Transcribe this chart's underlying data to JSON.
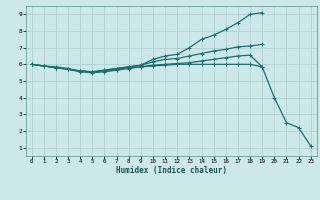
{
  "xlabel": "Humidex (Indice chaleur)",
  "bg_color": "#cce8e8",
  "grid_color": "#aacccc",
  "line_color": "#1a7070",
  "xlim": [
    -0.5,
    23.5
  ],
  "ylim": [
    0.5,
    9.5
  ],
  "xticks": [
    0,
    1,
    2,
    3,
    4,
    5,
    6,
    7,
    8,
    9,
    10,
    11,
    12,
    13,
    14,
    15,
    16,
    17,
    18,
    19,
    20,
    21,
    22,
    23
  ],
  "yticks": [
    1,
    2,
    3,
    4,
    5,
    6,
    7,
    8,
    9
  ],
  "line1_x": [
    0,
    1,
    2,
    3,
    4,
    5,
    6,
    7,
    8,
    9,
    10,
    11,
    12,
    13,
    14,
    15,
    16,
    17,
    18,
    19
  ],
  "line1_y": [
    6.0,
    5.9,
    5.8,
    5.7,
    5.6,
    5.55,
    5.65,
    5.75,
    5.85,
    5.95,
    6.3,
    6.5,
    6.6,
    7.0,
    7.5,
    7.75,
    8.1,
    8.5,
    9.0,
    9.1
  ],
  "line2_x": [
    0,
    1,
    2,
    3,
    4,
    5,
    6,
    7,
    8,
    9,
    10,
    11,
    12,
    13,
    14,
    15,
    16,
    17,
    18,
    19
  ],
  "line2_y": [
    6.0,
    5.9,
    5.8,
    5.7,
    5.6,
    5.55,
    5.65,
    5.75,
    5.85,
    5.95,
    6.15,
    6.3,
    6.35,
    6.5,
    6.65,
    6.8,
    6.9,
    7.05,
    7.1,
    7.2
  ],
  "line3_x": [
    0,
    1,
    2,
    3,
    4,
    5,
    6,
    7,
    8,
    9,
    10,
    11,
    12,
    13,
    14,
    15,
    16,
    17,
    18,
    19,
    20,
    21,
    22,
    23
  ],
  "line3_y": [
    6.0,
    5.9,
    5.8,
    5.7,
    5.55,
    5.5,
    5.55,
    5.65,
    5.75,
    5.85,
    5.95,
    6.0,
    6.05,
    6.1,
    6.2,
    6.3,
    6.4,
    6.5,
    6.55,
    5.85,
    4.0,
    2.5,
    2.2,
    1.1
  ],
  "line4_x": [
    0,
    1,
    2,
    3,
    4,
    5,
    6,
    7,
    8,
    9,
    10,
    11,
    12,
    13,
    14,
    15,
    16,
    17,
    18,
    19
  ],
  "line4_y": [
    6.0,
    5.9,
    5.85,
    5.75,
    5.6,
    5.55,
    5.6,
    5.7,
    5.8,
    5.85,
    5.9,
    5.95,
    6.0,
    6.0,
    6.0,
    6.0,
    6.0,
    6.0,
    6.0,
    5.85
  ],
  "marker": "+",
  "markersize": 3,
  "linewidth": 0.9
}
